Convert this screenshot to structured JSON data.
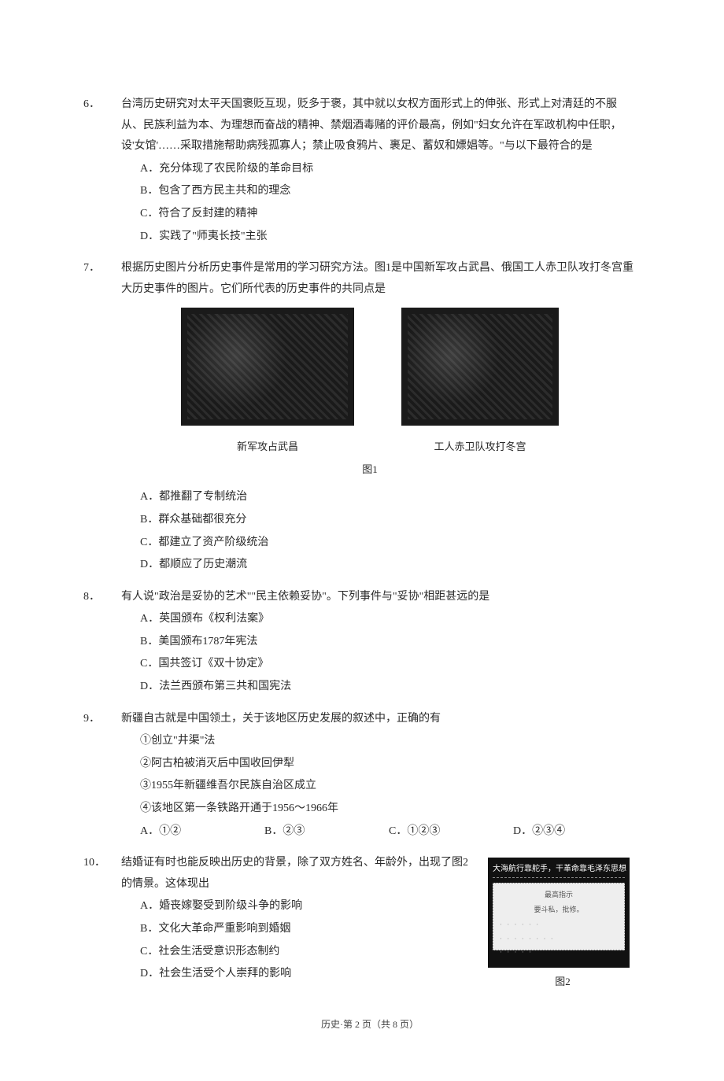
{
  "q6": {
    "num": "6．",
    "stem": "台湾历史研究对太平天国褒贬互现，贬多于褒，其中就以女权方面形式上的伸张、形式上对清廷的不服从、民族利益为本、为理想而奋战的精神、禁烟酒毒赌的评价最高，例如\"妇女允许在军政机构中任职，设'女馆'……采取措施帮助病残孤寡人；禁止吸食鸦片、裹足、蓄奴和嫖娼等。\"与以下最符合的是",
    "A": "A．充分体现了农民阶级的革命目标",
    "B": "B．包含了西方民主共和的理念",
    "C": "C．符合了反封建的精神",
    "D": "D．实践了\"师夷长技\"主张"
  },
  "q7": {
    "num": "7．",
    "stem": "根据历史图片分析历史事件是常用的学习研究方法。图1是中国新军攻占武昌、俄国工人赤卫队攻打冬宫重大历史事件的图片。它们所代表的历史事件的共同点是",
    "caption1": "新军攻占武昌",
    "caption2": "工人赤卫队攻打冬宫",
    "figlabel": "图1",
    "A": "A．都推翻了专制统治",
    "B": "B．群众基础都很充分",
    "C": "C．都建立了资产阶级统治",
    "D": "D．都顺应了历史潮流"
  },
  "q8": {
    "num": "8．",
    "stem": "有人说\"政治是妥协的艺术\"\"民主依赖妥协\"。下列事件与\"妥协\"相距甚远的是",
    "A": "A．英国颁布《权利法案》",
    "B": "B．美国颁布1787年宪法",
    "C": "C．国共签订《双十协定》",
    "D": "D．法兰西颁布第三共和国宪法"
  },
  "q9": {
    "num": "9．",
    "stem": "新疆自古就是中国领土，关于该地区历史发展的叙述中，正确的有",
    "s1": "①创立\"井渠\"法",
    "s2": "②阿古柏被消灭后中国收回伊犁",
    "s3": "③1955年新疆维吾尔民族自治区成立",
    "s4": "④该地区第一条铁路开通于1956～1966年",
    "A": "A．①②",
    "B": "B．②③",
    "C": "C．①②③",
    "D": "D．②③④"
  },
  "q10": {
    "num": "10．",
    "stem": "结婚证有时也能反映出历史的背景，除了双方姓名、年龄外，出现了图2的情景。这体现出",
    "A": "A．婚丧嫁娶受到阶级斗争的影响",
    "B": "B．文化大革命严重影响到婚姻",
    "C": "C．社会生活受意识形态制约",
    "D": "D．社会生活受个人崇拜的影响",
    "cert_header": "大海航行靠舵手，干革命靠毛泽东思想",
    "cert_line1": "最高指示",
    "cert_line2": "要斗私，批修。",
    "cert_caption": "图2"
  },
  "footer": "历史·第 2 页（共 8 页）"
}
